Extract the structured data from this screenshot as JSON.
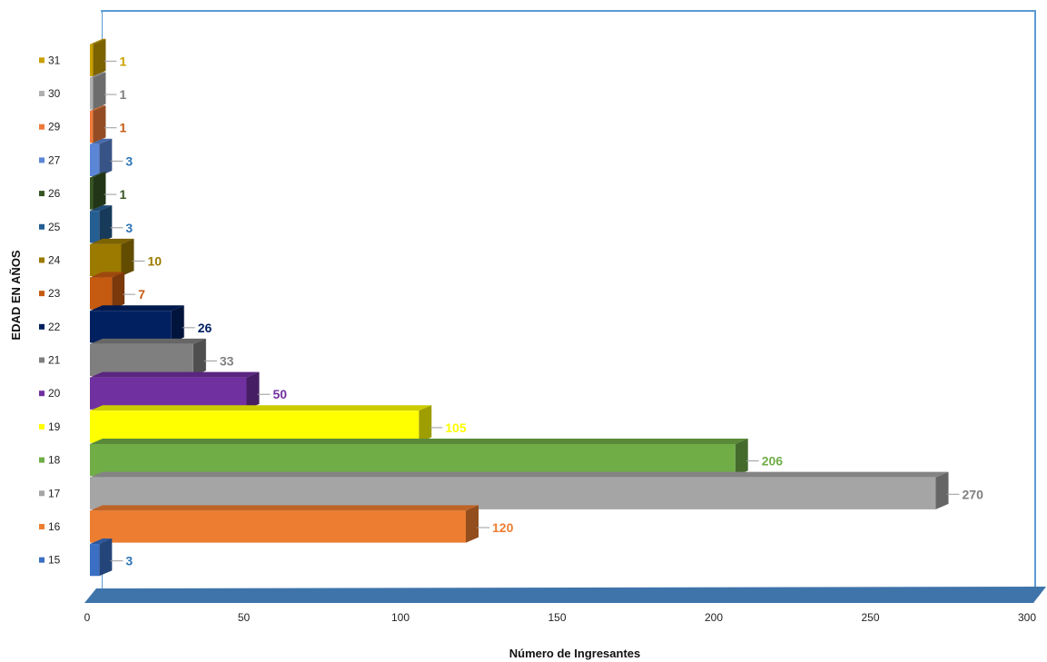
{
  "chart_data": {
    "type": "bar",
    "orientation": "horizontal",
    "xlabel": "Número de Ingresantes",
    "ylabel": "EDAD EN AÑOS",
    "xlim": [
      0,
      300
    ],
    "xticks": [
      0,
      50,
      100,
      150,
      200,
      250,
      300
    ],
    "legend": "left, beside category labels",
    "grid": false,
    "categories": [
      "15",
      "16",
      "17",
      "18",
      "19",
      "20",
      "21",
      "22",
      "23",
      "24",
      "25",
      "26",
      "27",
      "29",
      "30",
      "31"
    ],
    "values": [
      3,
      120,
      270,
      206,
      105,
      50,
      33,
      26,
      7,
      10,
      3,
      1,
      3,
      1,
      1,
      1
    ],
    "colors": [
      "#3a6fc4",
      "#ed7d31",
      "#a5a5a5",
      "#70ad47",
      "#ffff00",
      "#7030a0",
      "#7f7f7f",
      "#002060",
      "#c55a11",
      "#9c7a00",
      "#255e91",
      "#375623",
      "#5b86d6",
      "#ee7a3a",
      "#b0b0b0",
      "#c9a000"
    ],
    "label_colors": [
      "#2e75b6",
      "#ed7d31",
      "#7f7f7f",
      "#70ad47",
      "#ffff00",
      "#7030a0",
      "#7f7f7f",
      "#002060",
      "#c55a11",
      "#9c7a00",
      "#2e75b6",
      "#375623",
      "#2e75b6",
      "#c55a11",
      "#7f7f7f",
      "#c9a000"
    ],
    "wall_color": "#5b9bd5",
    "floor_color": "#3f74aa"
  }
}
